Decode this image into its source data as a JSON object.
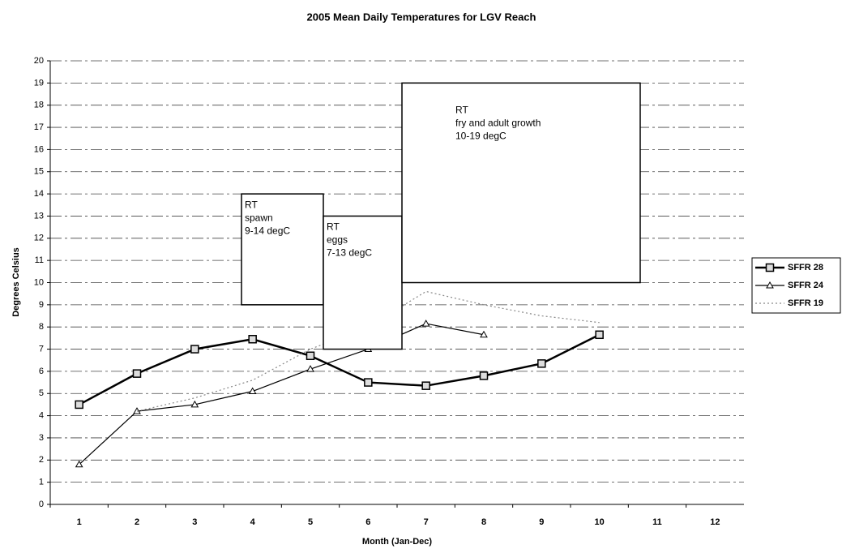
{
  "chart_data": {
    "type": "line",
    "title": "2005 Mean Daily Temperatures for LGV Reach",
    "xlabel": "Month (Jan-Dec)",
    "ylabel": "Degrees Celsius",
    "categories": [
      "1",
      "2",
      "3",
      "4",
      "5",
      "6",
      "7",
      "8",
      "9",
      "10",
      "11",
      "12"
    ],
    "ylim": [
      0,
      20
    ],
    "yticks": [
      0,
      1,
      2,
      3,
      4,
      5,
      6,
      7,
      8,
      9,
      10,
      11,
      12,
      13,
      14,
      15,
      16,
      17,
      18,
      19,
      20
    ],
    "grid": true,
    "legend": "right",
    "series": [
      {
        "name": "SFFR 28",
        "color": "#000000",
        "marker": "square",
        "values": [
          4.5,
          5.9,
          7.0,
          7.45,
          6.7,
          5.5,
          5.35,
          5.8,
          6.35,
          7.65,
          null,
          null
        ]
      },
      {
        "name": "SFFR 24",
        "color": "#000000",
        "marker": "triangle",
        "values": [
          1.8,
          4.2,
          4.5,
          5.1,
          6.1,
          7.0,
          8.15,
          7.65,
          null,
          null,
          null,
          null
        ]
      },
      {
        "name": "SFFR 19",
        "color": "#888888",
        "marker": "none",
        "values": [
          null,
          4.2,
          4.8,
          5.6,
          7.0,
          8.0,
          9.6,
          9.0,
          8.5,
          8.2,
          null,
          null
        ]
      }
    ],
    "annotations": [
      {
        "lines": [
          "RT",
          "spawn",
          "9-14 degC"
        ],
        "ymin": 9,
        "ymax": 14
      },
      {
        "lines": [
          "RT",
          "eggs",
          "7-13 degC"
        ],
        "ymin": 7,
        "ymax": 13
      },
      {
        "lines": [
          "RT",
          "fry and adult growth",
          "10-19 degC"
        ],
        "ymin": 10,
        "ymax": 19
      }
    ]
  }
}
